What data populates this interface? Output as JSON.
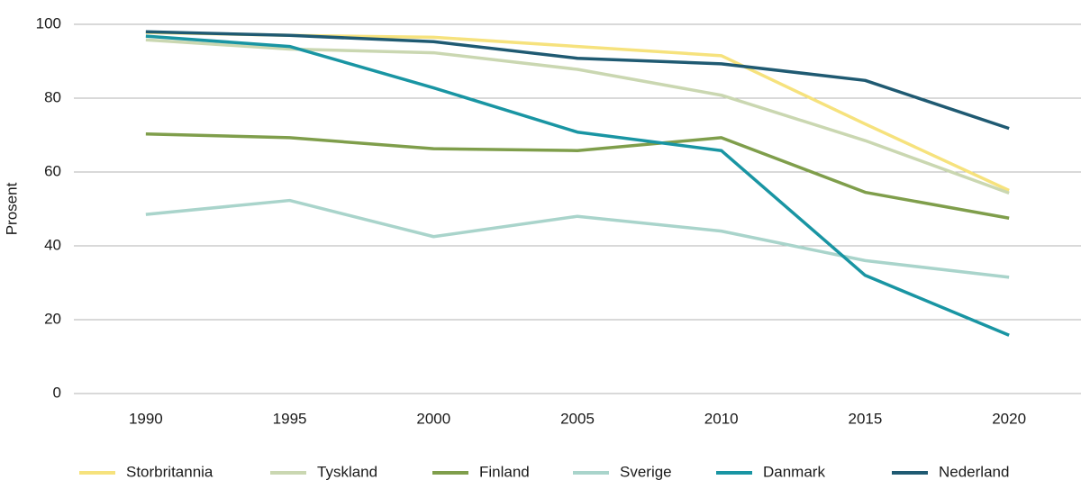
{
  "chart_data": {
    "type": "line",
    "y_label": "Prosent",
    "categories": [
      "1990",
      "1995",
      "2000",
      "2005",
      "2010",
      "2015",
      "2020"
    ],
    "series": [
      {
        "name": "Storbritannia",
        "color": "#f6e27d",
        "values": [
          97.8,
          97,
          96.5,
          94,
          91.5,
          73,
          55
        ]
      },
      {
        "name": "Tyskland",
        "color": "#cad7b1",
        "values": [
          95.8,
          93.3,
          92.3,
          87.8,
          80.8,
          68.5,
          54.3
        ]
      },
      {
        "name": "Finland",
        "color": "#7f9e4b",
        "values": [
          70.3,
          69.3,
          66.3,
          65.8,
          69.3,
          54.5,
          47.5
        ]
      },
      {
        "name": "Sverige",
        "color": "#a9d4cb",
        "values": [
          48.5,
          52.3,
          42.5,
          48,
          44,
          36,
          31.5
        ]
      },
      {
        "name": "Danmark",
        "color": "#1995a3",
        "values": [
          96.8,
          94,
          82.8,
          70.8,
          65.8,
          32,
          15.8
        ]
      },
      {
        "name": "Nederland",
        "color": "#1f5a72",
        "values": [
          98,
          97,
          95.3,
          90.8,
          89.3,
          84.8,
          71.8
        ]
      }
    ],
    "ylim": [
      0,
      100
    ],
    "yticks": [
      0,
      20,
      40,
      60,
      80,
      100
    ],
    "grid": true,
    "legend": "bottom"
  }
}
